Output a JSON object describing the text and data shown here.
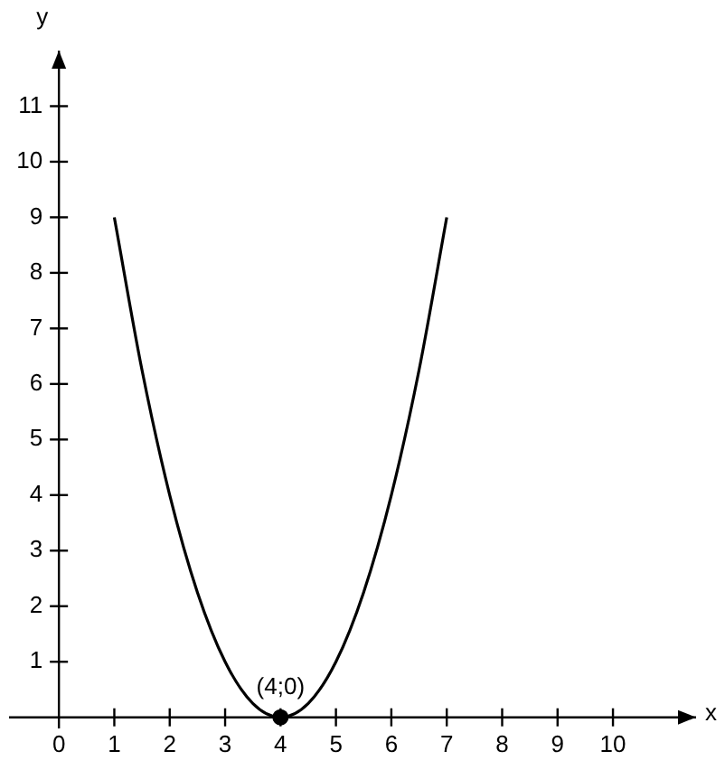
{
  "chart_data": {
    "type": "line",
    "xlabel": "x",
    "ylabel": "y",
    "xlim": [
      -0.9,
      11.5
    ],
    "ylim": [
      -0.2,
      12
    ],
    "xticks": [
      0,
      1,
      2,
      3,
      4,
      5,
      6,
      7,
      8,
      9,
      10
    ],
    "yticks": [
      1,
      2,
      3,
      4,
      5,
      6,
      7,
      8,
      9,
      10,
      11
    ],
    "series": [
      {
        "type": "line",
        "color": "#000000",
        "marker": "none",
        "x": [
          1,
          1.5,
          2,
          2.5,
          3,
          3.5,
          4,
          4.5,
          5,
          5.5,
          6,
          6.5,
          7
        ],
        "values": [
          9,
          6.25,
          4,
          2.25,
          1,
          0.25,
          0,
          0.25,
          1,
          2.25,
          4,
          6.25,
          9
        ]
      },
      {
        "type": "scatter",
        "color": "#000000",
        "marker": "circle",
        "x": [
          4
        ],
        "values": [
          0
        ]
      }
    ],
    "annotations": [
      {
        "text": "(4;0)",
        "x": 4,
        "y": 0
      }
    ]
  }
}
